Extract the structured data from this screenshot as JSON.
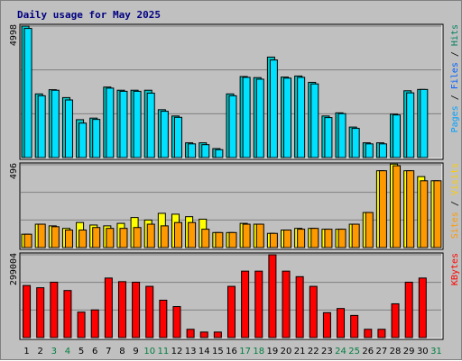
{
  "chart_data": {
    "type": "bar",
    "title": "Daily usage for May 2025",
    "categories": [
      "1",
      "2",
      "3",
      "4",
      "5",
      "6",
      "7",
      "8",
      "9",
      "10",
      "11",
      "12",
      "13",
      "14",
      "15",
      "16",
      "17",
      "18",
      "19",
      "20",
      "21",
      "22",
      "23",
      "24",
      "25",
      "26",
      "27",
      "28",
      "29",
      "30",
      "31"
    ],
    "weekend_days": [
      "3",
      "4",
      "10",
      "11",
      "17",
      "18",
      "24",
      "25",
      "31"
    ],
    "colors": {
      "hits": "#00c8c8",
      "files": "#00e0ff",
      "pages": "#00a0ff",
      "visits": "#ffff00",
      "sites": "#ff9900",
      "kbytes": "#ff0000",
      "weekday_label": "#000000",
      "weekend_label": "#007f3f",
      "title": "#000080",
      "panel_bg": "#c0c0c0",
      "grid": "#808080"
    },
    "panels": [
      {
        "id": "top",
        "axis_max_label": "4998",
        "ymax": 4998,
        "legend": [
          {
            "text": "Pages",
            "color": "#00a0ff"
          },
          {
            "text": " / ",
            "color": "#000000"
          },
          {
            "text": "Files",
            "color": "#0060ff"
          },
          {
            "text": " / ",
            "color": "#000000"
          },
          {
            "text": "Hits",
            "color": "#008060"
          }
        ],
        "series": [
          {
            "name": "Hits",
            "color": "#00c8c8",
            "values": [
              4998,
              2420,
              2580,
              2280,
              1440,
              1500,
              2680,
              2560,
              2560,
              2560,
              1820,
              1580,
              560,
              560,
              340,
              2420,
              3080,
              3040,
              3820,
              3060,
              3100,
              2860,
              1580,
              1700,
              1160,
              560,
              560,
              1650,
              2540,
              2590,
              0
            ]
          },
          {
            "name": "Files",
            "color": "#00e0ff",
            "values": [
              4910,
              2350,
              2560,
              2190,
              1310,
              1450,
              2640,
              2520,
              2520,
              2450,
              1760,
              1530,
              520,
              490,
              300,
              2350,
              3050,
              2980,
              3710,
              3020,
              3050,
              2800,
              1520,
              1670,
              1110,
              520,
              520,
              1620,
              2460,
              2590,
              0
            ]
          }
        ]
      },
      {
        "id": "middle",
        "axis_max_label": "496",
        "ymax": 496,
        "legend": [
          {
            "text": "Sites",
            "color": "#ff9900"
          },
          {
            "text": " / ",
            "color": "#000000"
          },
          {
            "text": "Visits",
            "color": "#ffcc00"
          }
        ],
        "series": [
          {
            "name": "Visits",
            "color": "#ffff00",
            "values": [
              80,
              140,
              130,
              115,
              150,
              135,
              130,
              145,
              180,
              165,
              205,
              200,
              185,
              170,
              90,
              90,
              145,
              140,
              85,
              105,
              115,
              115,
              110,
              110,
              140,
              210,
              460,
              500,
              460,
              425,
              400
            ]
          },
          {
            "name": "Sites",
            "color": "#ff9900",
            "values": [
              80,
              140,
              125,
              105,
              105,
              120,
              115,
              115,
              120,
              140,
              130,
              150,
              150,
              110,
              90,
              90,
              140,
              140,
              85,
              105,
              110,
              115,
              110,
              110,
              140,
              210,
              460,
              490,
              460,
              400,
              400
            ]
          }
        ]
      },
      {
        "id": "bottom",
        "axis_max_label": "299004",
        "ymax": 299004,
        "legend": [
          {
            "text": "KBytes",
            "color": "#ff0000"
          }
        ],
        "series": [
          {
            "name": "KBytes",
            "color": "#ff0000",
            "values": [
              188000,
              180000,
              200000,
              170000,
              92000,
              100000,
              215000,
              202000,
              200000,
              185000,
              135000,
              112000,
              30000,
              20000,
              20000,
              185000,
              240000,
              240000,
              299004,
              240000,
              220000,
              185000,
              90000,
              105000,
              80000,
              30000,
              30000,
              122000,
              200000,
              215000,
              0
            ]
          }
        ]
      }
    ]
  }
}
